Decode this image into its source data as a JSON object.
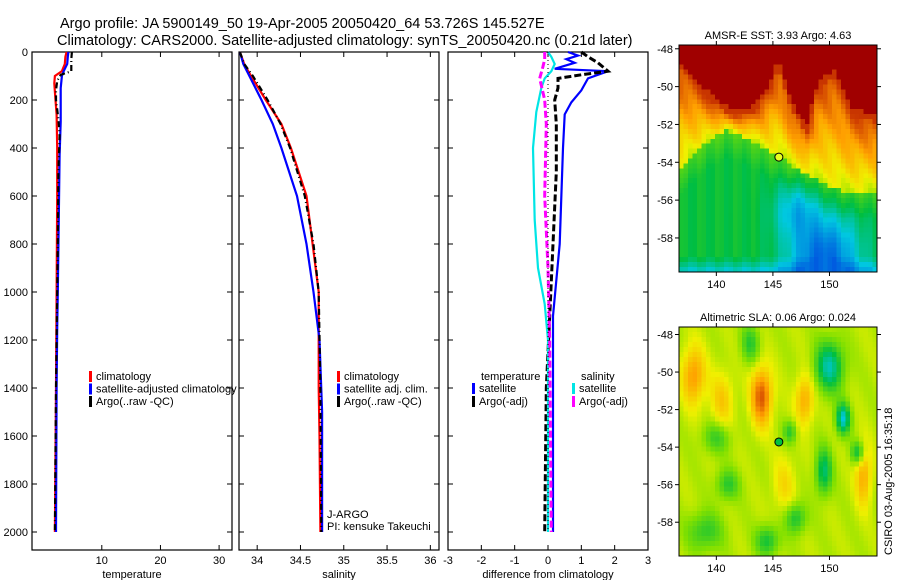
{
  "header": {
    "title_line1": "Argo profile: JA 5900149_50 19-Apr-2005 20050420_64 53.726S 145.527E",
    "title_line2": "Climatology: CARS2000. Satellite-adjusted climatology: synTS_20050420.nc (0.21d later)"
  },
  "credit": "CSIRO 03-Aug-2005 16:35:18",
  "colors": {
    "red": "#ff0000",
    "blue": "#0000ff",
    "black": "#000000",
    "cyan": "#00e5e5",
    "magenta": "#ff00ff"
  },
  "chart_data": [
    {
      "type": "line",
      "id": "temperature",
      "xlabel": "temperature",
      "ylabel": "",
      "xlim": [
        -1.9,
        32.2
      ],
      "ylim": [
        2075,
        0
      ],
      "xticks": [
        10,
        20,
        30
      ],
      "yticks": [
        0,
        200,
        400,
        600,
        800,
        1000,
        1200,
        1400,
        1600,
        1800,
        2000
      ],
      "legend": {
        "placement": "center-left",
        "entries": [
          "climatology",
          "satellite-adjusted climatology",
          "Argo(..raw -QC)"
        ]
      },
      "series": [
        {
          "name": "climatology",
          "color": "red",
          "style": "solid",
          "depth": [
            0,
            20,
            50,
            80,
            100,
            130,
            200,
            260,
            400,
            600,
            1000,
            1400,
            2000
          ],
          "values": [
            4.0,
            3.8,
            3.7,
            3.2,
            2.0,
            1.9,
            2.1,
            2.3,
            2.4,
            2.4,
            2.3,
            2.2,
            2.0
          ]
        },
        {
          "name": "satellite-adjusted climatology",
          "color": "blue",
          "style": "solid",
          "depth": [
            0,
            20,
            50,
            80,
            100,
            150,
            290,
            430,
            620,
            1000,
            1150,
            1400,
            2000
          ],
          "values": [
            4.3,
            4.2,
            4.1,
            3.5,
            3.2,
            3.0,
            3.0,
            2.8,
            2.7,
            2.5,
            2.4,
            2.3,
            2.2
          ]
        },
        {
          "name": "Argo(..raw -QC)",
          "color": "black",
          "style": "dashdot",
          "depth": [
            0,
            30,
            80,
            95,
            120,
            160,
            200,
            280,
            350,
            500,
            800,
            1000,
            1400,
            2000
          ],
          "values": [
            4.9,
            4.8,
            4.8,
            3.0,
            2.4,
            2.2,
            2.2,
            2.6,
            2.8,
            2.6,
            2.5,
            2.4,
            2.2,
            2.0
          ]
        }
      ]
    },
    {
      "type": "line",
      "id": "salinity",
      "xlabel": "salinity",
      "xlim": [
        33.79,
        36.1
      ],
      "ylim": [
        2075,
        0
      ],
      "xticks": [
        "34",
        "34.5",
        "35",
        "35.5",
        "36"
      ],
      "xtick_values": [
        34,
        34.5,
        35,
        35.5,
        36
      ],
      "legend": {
        "placement": "center-right",
        "entries": [
          "climatology",
          "satellite adj. clim.",
          "Argo(..raw -QC)"
        ]
      },
      "annotation": [
        "J-ARGO",
        "PI: kensuke Takeuchi"
      ],
      "series": [
        {
          "name": "climatology",
          "color": "red",
          "style": "solid",
          "depth": [
            0,
            50,
            100,
            200,
            300,
            400,
            600,
            800,
            1000,
            1400,
            1600,
            2000
          ],
          "values": [
            33.8,
            33.85,
            33.93,
            34.1,
            34.28,
            34.39,
            34.57,
            34.64,
            34.71,
            34.71,
            34.72,
            34.73
          ]
        },
        {
          "name": "satellite adj. clim.",
          "color": "blue",
          "style": "solid",
          "depth": [
            0,
            50,
            100,
            200,
            300,
            400,
            600,
            800,
            1000,
            1200,
            1500,
            2000
          ],
          "values": [
            33.8,
            33.84,
            33.91,
            34.05,
            34.18,
            34.28,
            34.46,
            34.57,
            34.65,
            34.72,
            34.75,
            34.75
          ]
        },
        {
          "name": "Argo(..raw -QC)",
          "color": "black",
          "style": "dashdot",
          "depth": [
            0,
            50,
            100,
            200,
            300,
            400,
            600,
            800,
            1000,
            1400,
            2000
          ],
          "values": [
            33.8,
            33.85,
            33.95,
            34.12,
            34.27,
            34.38,
            34.55,
            34.65,
            34.71,
            34.73,
            34.74
          ]
        }
      ]
    },
    {
      "type": "line",
      "id": "difference",
      "xlabel": "difference from climatology",
      "xlim": [
        -3,
        3
      ],
      "ylim": [
        2075,
        0
      ],
      "xticks": [
        "-3",
        "-2",
        "-1",
        "0",
        "1",
        "2",
        "3"
      ],
      "xtick_values": [
        -3,
        -2,
        -1,
        0,
        1,
        2,
        3
      ],
      "legend": {
        "placement": "center",
        "groups": [
          {
            "title": "temperature",
            "entries": [
              "satellite",
              "Argo(-adj)"
            ]
          },
          {
            "title": "salinity",
            "entries": [
              "satellite",
              "Argo(-adj)"
            ]
          }
        ]
      },
      "series": [
        {
          "name": "temperature satellite",
          "color": "blue",
          "style": "solid",
          "depth": [
            0,
            15,
            30,
            45,
            70,
            80,
            110,
            160,
            210,
            260,
            400,
            800,
            1100,
            1300,
            2000
          ],
          "values": [
            0.6,
            0.9,
            0.55,
            0.8,
            0.2,
            1.8,
            1.2,
            1.0,
            0.7,
            0.5,
            0.45,
            0.35,
            0.15,
            0.15,
            0.15
          ]
        },
        {
          "name": "temperature Argo(-adj)",
          "color": "black",
          "style": "dashed",
          "depth": [
            0,
            20,
            45,
            80,
            95,
            110,
            150,
            200,
            300,
            500,
            800,
            1100,
            1400,
            2000
          ],
          "values": [
            1.0,
            1.2,
            1.5,
            1.8,
            1.0,
            0.3,
            0.3,
            0.2,
            0.25,
            0.25,
            0.15,
            0.05,
            -0.05,
            -0.1
          ]
        },
        {
          "name": "salinity satellite",
          "color": "cyan",
          "style": "solid",
          "depth": [
            0,
            20,
            50,
            80,
            110,
            150,
            250,
            400,
            700,
            900,
            1050,
            1200,
            2000
          ],
          "values": [
            0.0,
            0.1,
            0.2,
            0.1,
            -0.1,
            -0.2,
            -0.35,
            -0.45,
            -0.4,
            -0.3,
            -0.1,
            0.0,
            0.0
          ]
        },
        {
          "name": "salinity Argo(-adj)",
          "color": "magenta",
          "style": "dashed",
          "depth": [
            0,
            30,
            60,
            110,
            200,
            300,
            600,
            900,
            1200,
            2000
          ],
          "values": [
            -0.1,
            -0.1,
            -0.15,
            -0.25,
            -0.1,
            -0.05,
            -0.1,
            0.0,
            0.05,
            0.1
          ]
        },
        {
          "name": "zero line",
          "color": "black",
          "style": "dotted",
          "depth": [
            0,
            2000
          ],
          "values": [
            0,
            0
          ]
        }
      ]
    },
    {
      "type": "heatmap",
      "id": "sst-map",
      "title": "AMSR-E SST: 3.93 Argo: 4.63",
      "xlim": [
        136.7,
        154.2
      ],
      "ylim": [
        -59.8,
        -47.8
      ],
      "xticks": [
        "140",
        "145",
        "150"
      ],
      "xtick_values": [
        140,
        145,
        150
      ],
      "yticks": [
        "-48",
        "-50",
        "-52",
        "-54",
        "-56",
        "-58"
      ],
      "ytick_values": [
        -48,
        -50,
        -52,
        -54,
        -56,
        -58
      ],
      "float_position": {
        "lon": 145.527,
        "lat": -53.726
      }
    },
    {
      "type": "heatmap",
      "id": "sla-map",
      "title": "Altimetric SLA: 0.06 Argo: 0.024",
      "xlim": [
        136.7,
        154.2
      ],
      "ylim": [
        -59.8,
        -47.6
      ],
      "xticks": [
        "140",
        "145",
        "150"
      ],
      "xtick_values": [
        140,
        145,
        150
      ],
      "yticks": [
        "-48",
        "-50",
        "-52",
        "-54",
        "-56",
        "-58"
      ],
      "ytick_values": [
        -48,
        -50,
        -52,
        -54,
        -56,
        -58
      ],
      "float_position": {
        "lon": 145.527,
        "lat": -53.726
      }
    }
  ]
}
